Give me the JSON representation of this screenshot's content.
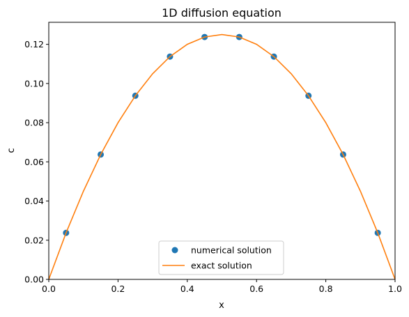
{
  "chart_data": {
    "type": "scatter",
    "title": "1D diffusion equation",
    "xlabel": "x",
    "ylabel": "c",
    "xlim": [
      0.0,
      1.0
    ],
    "ylim": [
      0.0,
      0.13125
    ],
    "xticks": [
      "0.0",
      "0.2",
      "0.4",
      "0.6",
      "0.8",
      "1.0"
    ],
    "yticks": [
      "0.00",
      "0.02",
      "0.04",
      "0.06",
      "0.08",
      "0.10",
      "0.12"
    ],
    "grid": false,
    "legend_position": "bottom-center",
    "series": [
      {
        "name": "numerical solution",
        "kind": "scatter",
        "color": "#1f77b4",
        "x": [
          0.05,
          0.15,
          0.25,
          0.35,
          0.45,
          0.55,
          0.65,
          0.75,
          0.85,
          0.95
        ],
        "y": [
          0.02375,
          0.06375,
          0.09375,
          0.11375,
          0.12375,
          0.12375,
          0.11375,
          0.09375,
          0.06375,
          0.02375
        ]
      },
      {
        "name": "exact solution",
        "kind": "line",
        "color": "#ff7f0e",
        "x": [
          0.0,
          0.05,
          0.1,
          0.15,
          0.2,
          0.25,
          0.3,
          0.35,
          0.4,
          0.45,
          0.5,
          0.55,
          0.6,
          0.65,
          0.7,
          0.75,
          0.8,
          0.85,
          0.9,
          0.95,
          1.0
        ],
        "y": [
          0.0,
          0.02375,
          0.045,
          0.06375,
          0.08,
          0.09375,
          0.105,
          0.11375,
          0.12,
          0.12375,
          0.125,
          0.12375,
          0.12,
          0.11375,
          0.105,
          0.09375,
          0.08,
          0.06375,
          0.045,
          0.02375,
          0.0
        ]
      }
    ]
  }
}
